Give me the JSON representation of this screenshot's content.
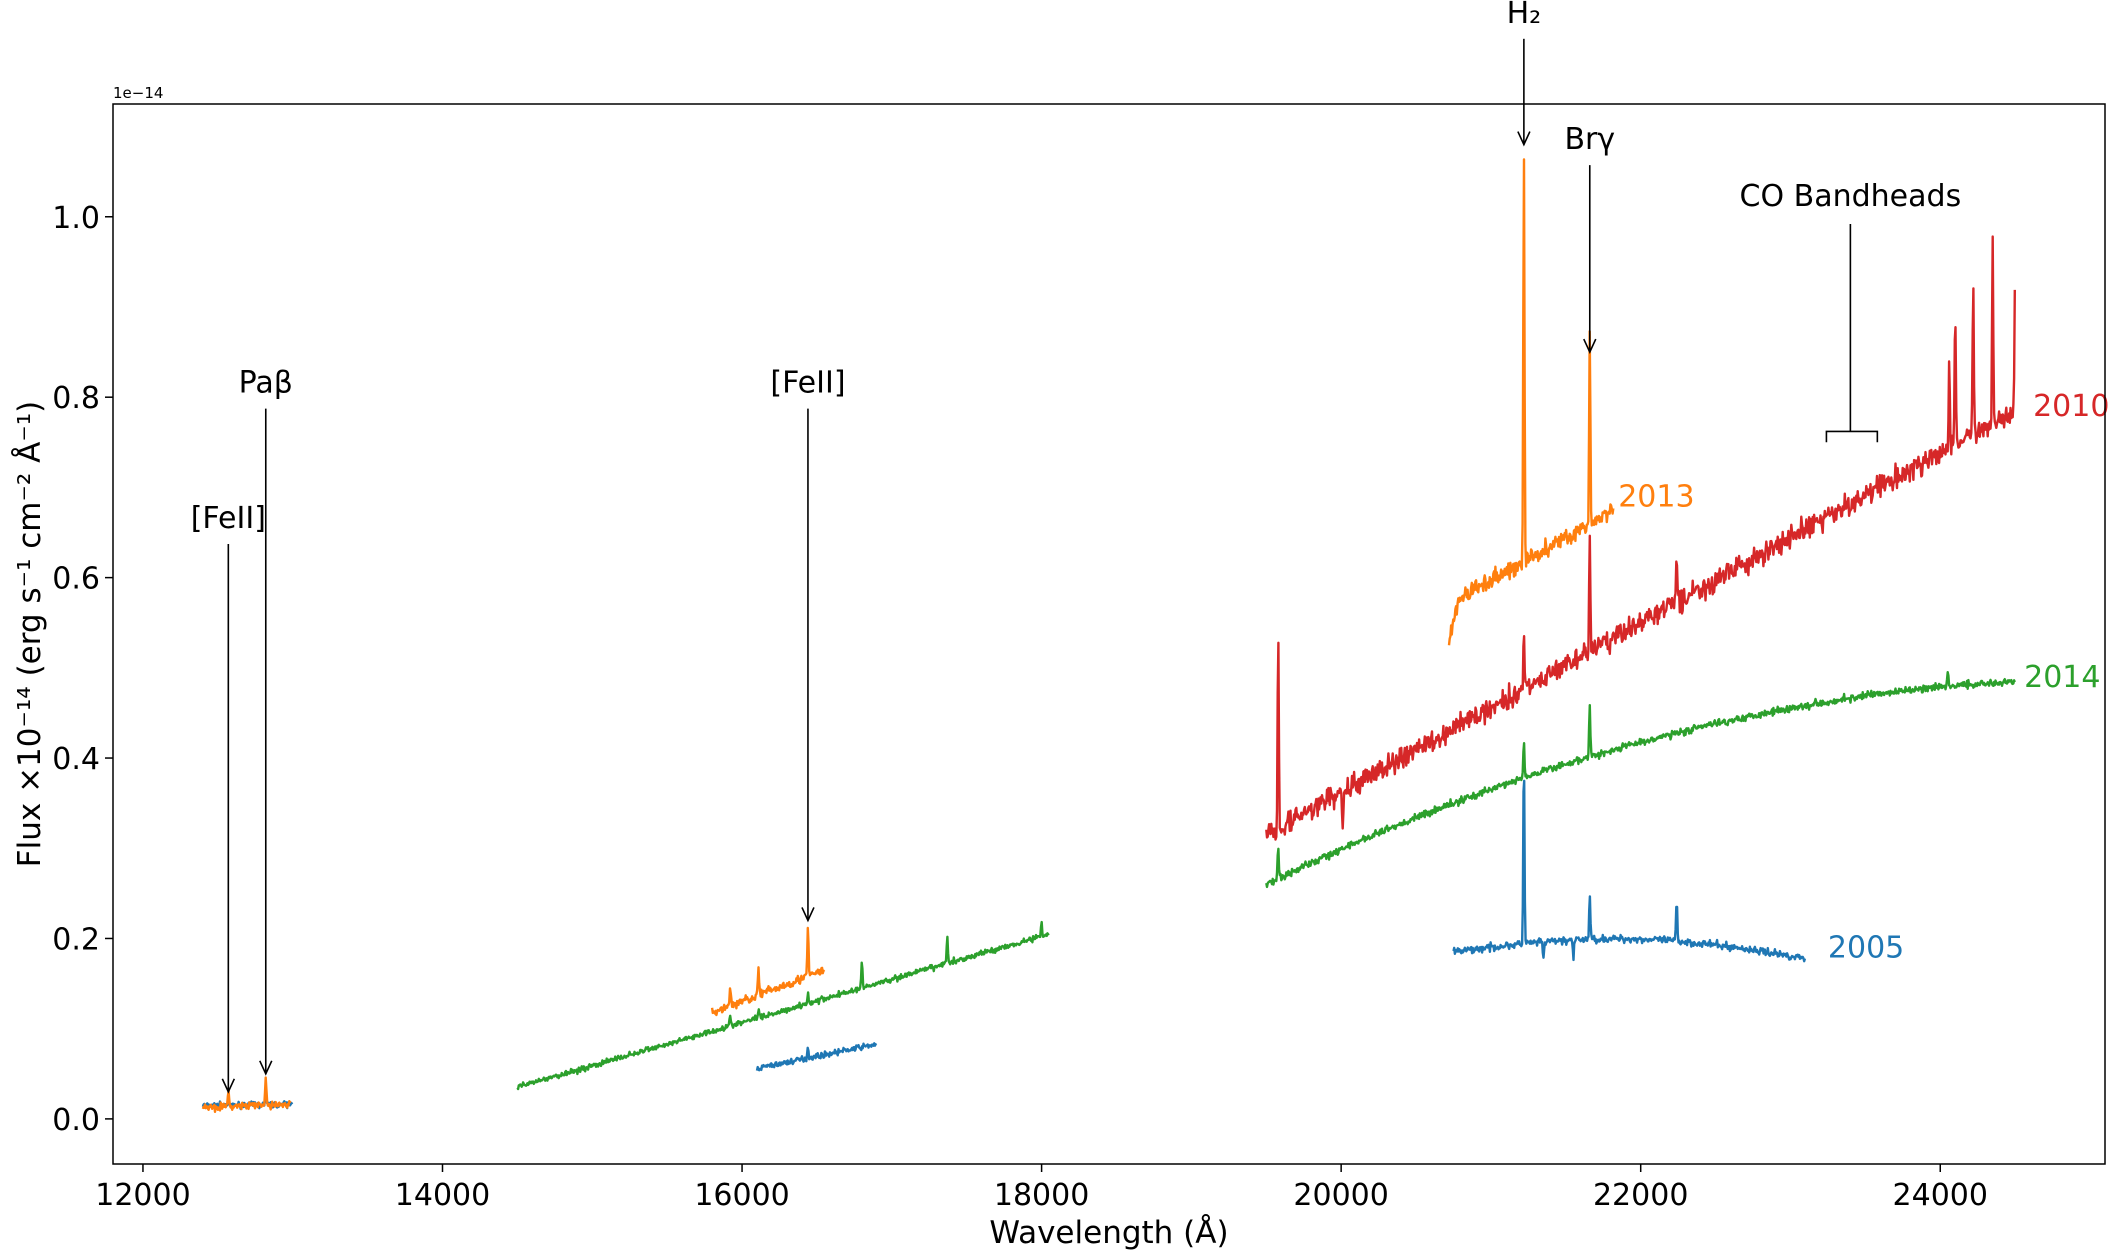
{
  "chart_data": {
    "type": "line",
    "title": "",
    "xlabel": "Wavelength (Å)",
    "ylabel": "Flux ×10⁻¹⁴ (erg s⁻¹ cm⁻² Å⁻¹)",
    "offset_text": "1e−14",
    "xlim": [
      11800,
      25100
    ],
    "ylim": [
      -0.05,
      1.125
    ],
    "xticks": [
      12000,
      14000,
      16000,
      18000,
      20000,
      22000,
      24000
    ],
    "xtick_labels": [
      "12000",
      "14000",
      "16000",
      "18000",
      "20000",
      "22000",
      "24000"
    ],
    "yticks": [
      0.0,
      0.2,
      0.4,
      0.6,
      0.8,
      1.0
    ],
    "ytick_labels": [
      "0.0",
      "0.2",
      "0.4",
      "0.6",
      "0.8",
      "1.0"
    ],
    "grid": false,
    "series": [
      {
        "name": "2005",
        "color": "#1f77b4",
        "segments": [
          {
            "start": 12400,
            "end": 13000,
            "f0": 0.015,
            "f1": 0.016,
            "noise": 0.003,
            "lines": [
              [
                12570,
                0.006
              ],
              [
                12820,
                0.012
              ]
            ]
          },
          {
            "start": 16100,
            "end": 16900,
            "f0": 0.056,
            "f1": 0.083,
            "noise": 0.003,
            "lines": [
              [
                16440,
                0.012
              ]
            ]
          },
          {
            "start": 20750,
            "end": 23100,
            "f0": 0.185,
            "f1": 0.178,
            "noise": 0.004,
            "hump": 0.018,
            "lines": [
              [
                21220,
                0.21
              ],
              [
                21660,
                0.05
              ],
              [
                22240,
                0.045
              ],
              [
                21350,
                -0.02
              ],
              [
                21550,
                -0.022
              ]
            ]
          }
        ]
      },
      {
        "name": "2013",
        "color": "#ff7f0e",
        "segments": [
          {
            "start": 12400,
            "end": 12990,
            "f0": 0.013,
            "f1": 0.016,
            "noise": 0.004,
            "lines": [
              [
                12570,
                0.015
              ],
              [
                12820,
                0.03
              ]
            ]
          },
          {
            "start": 15800,
            "end": 16550,
            "f0": 0.118,
            "f1": 0.165,
            "noise": 0.005,
            "lines": [
              [
                15920,
                0.02
              ],
              [
                16110,
                0.03
              ],
              [
                16440,
                0.055
              ]
            ]
          },
          {
            "start": 20720,
            "end": 21820,
            "f0": 0.57,
            "f1": 0.675,
            "noise": 0.01,
            "lowstart": 0.05,
            "lines": [
              [
                21220,
                0.455
              ],
              [
                21660,
                0.21
              ]
            ]
          }
        ]
      },
      {
        "name": "2014",
        "color": "#2ca02c",
        "segments": [
          {
            "start": 14500,
            "end": 18050,
            "f0": 0.035,
            "f1": 0.205,
            "noise": 0.003,
            "lines": [
              [
                15920,
                0.01
              ],
              [
                16110,
                0.01
              ],
              [
                16440,
                0.012
              ],
              [
                16800,
                0.03
              ],
              [
                17370,
                0.03
              ],
              [
                18000,
                0.015
              ]
            ]
          },
          {
            "start": 19500,
            "end": 24500,
            "f0": 0.26,
            "f1": 0.485,
            "noise": 0.004,
            "curve": 0.1,
            "lines": [
              [
                19580,
                0.04
              ],
              [
                21220,
                0.04
              ],
              [
                21660,
                0.06
              ],
              [
                24050,
                0.015
              ]
            ]
          }
        ]
      },
      {
        "name": "2010",
        "color": "#d62728",
        "segments": [
          {
            "start": 19500,
            "end": 24500,
            "f0": 0.315,
            "f1": 0.785,
            "noise": 0.012,
            "lines": [
              [
                19580,
                0.22
              ],
              [
                20010,
                -0.04
              ],
              [
                21220,
                0.06
              ],
              [
                21660,
                0.13
              ],
              [
                22240,
                0.05
              ],
              [
                24060,
                0.1
              ],
              [
                24100,
                0.15
              ],
              [
                24220,
                0.16
              ],
              [
                24350,
                0.2
              ],
              [
                24500,
                0.16
              ]
            ]
          }
        ]
      }
    ],
    "series_labels": [
      {
        "text": "2005",
        "x": 23250,
        "y": 0.19
      },
      {
        "text": "2013",
        "x": 21850,
        "y": 0.69
      },
      {
        "text": "2014",
        "x": 24560,
        "y": 0.49
      },
      {
        "text": "2010",
        "x": 24620,
        "y": 0.79
      }
    ],
    "annotations": [
      {
        "label": "[FeII]",
        "x": 12570,
        "text_y": 0.655,
        "tip_y": 0.03
      },
      {
        "label": "Paβ",
        "x": 12820,
        "text_y": 0.805,
        "tip_y": 0.05
      },
      {
        "label": "[FeII]",
        "x": 16440,
        "text_y": 0.805,
        "tip_y": 0.22
      },
      {
        "label": "H₂",
        "x": 21220,
        "text_y": 1.215,
        "tip_y": 1.08
      },
      {
        "label": "Brγ",
        "x": 21660,
        "text_y": 1.075,
        "tip_y": 0.85
      },
      {
        "label": "CO Bandheads",
        "x": 23400,
        "text_y": 1.012,
        "tip_y": 0.755,
        "bracket": [
          23240,
          23580,
          0.75
        ]
      }
    ]
  }
}
